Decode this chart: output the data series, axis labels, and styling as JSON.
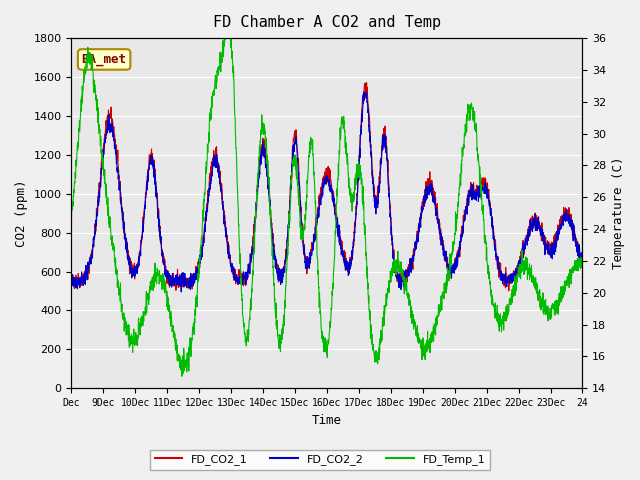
{
  "title": "FD Chamber A CO2 and Temp",
  "xlabel": "Time",
  "ylabel_left": "CO2 (ppm)",
  "ylabel_right": "Temperature (C)",
  "ylim_left": [
    0,
    1800
  ],
  "ylim_right": [
    14,
    36
  ],
  "yticks_left": [
    0,
    200,
    400,
    600,
    800,
    1000,
    1200,
    1400,
    1600,
    1800
  ],
  "yticks_right": [
    14,
    16,
    18,
    20,
    22,
    24,
    26,
    28,
    30,
    32,
    34,
    36
  ],
  "xtick_labels": [
    "Dec",
    "9Dec",
    "10Dec",
    "11Dec",
    "12Dec",
    "13Dec",
    "14Dec",
    "15Dec",
    "16Dec",
    "17Dec",
    "18Dec",
    "19Dec",
    "20Dec",
    "21Dec",
    "22Dec",
    "23Dec",
    "24"
  ],
  "color_co2_1": "#cc0000",
  "color_co2_2": "#0000cc",
  "color_temp": "#00bb00",
  "legend_labels": [
    "FD_CO2_1",
    "FD_CO2_2",
    "FD_Temp_1"
  ],
  "annotation_text": "BA_met",
  "annotation_color": "#8b0000",
  "annotation_bg": "#ffffcc",
  "bg_color": "#f0f0f0",
  "plot_bg": "#e8e8e8",
  "grid_color": "#ffffff",
  "font_family": "monospace"
}
